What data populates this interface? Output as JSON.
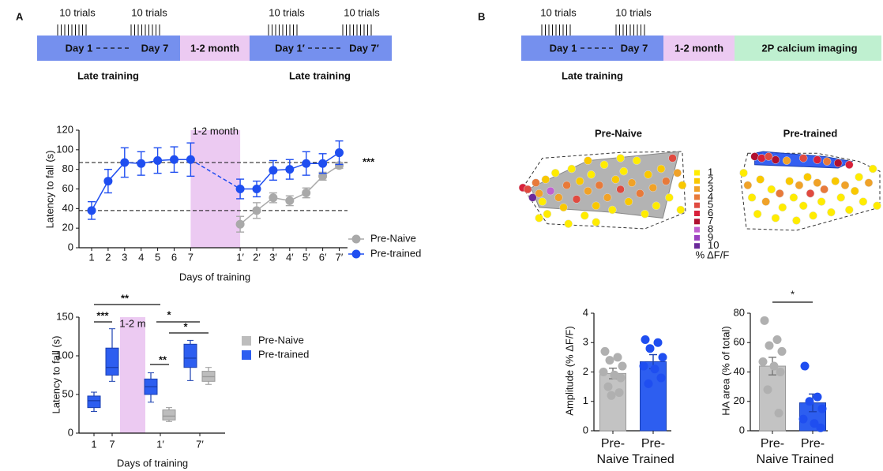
{
  "panel_labels": [
    "A",
    "B"
  ],
  "timelines": [
    {
      "trials": [
        "10 trials",
        "10 trials",
        "10 trials",
        "10 trials"
      ],
      "blocks": [
        "Day 1",
        "Day 7",
        "1-2 month",
        "Day 1′",
        "Day 7′"
      ],
      "phases": [
        "Late training",
        "Late training"
      ]
    },
    {
      "trials": [
        "10 trials",
        "10 trials"
      ],
      "blocks": [
        "Day 1",
        "Day 7",
        "1-2 month",
        "2P calcium imaging"
      ],
      "phases": [
        "Late training"
      ]
    }
  ],
  "chart_data": [
    {
      "type": "line",
      "ylabel": "Latency to fall (s)",
      "xlabel": "Days of training",
      "categories": [
        "1",
        "2",
        "3",
        "4",
        "5",
        "6",
        "7",
        null,
        null,
        "1′",
        "2′",
        "3′",
        "4′",
        "5′",
        "6′",
        "7′"
      ],
      "series": [
        {
          "name": "Pre-Naive",
          "color": "#a9a9a9",
          "values": [
            null,
            null,
            null,
            null,
            null,
            null,
            null,
            null,
            null,
            24,
            38,
            51,
            48,
            56,
            73,
            84
          ],
          "errors": [
            null,
            null,
            null,
            null,
            null,
            null,
            null,
            null,
            null,
            8,
            8,
            5,
            5,
            5,
            4,
            3
          ]
        },
        {
          "name": "Pre-trained",
          "color": "#1f4ef0",
          "gap_style": "dashed",
          "values": [
            38,
            68,
            87,
            86,
            89,
            90,
            90,
            null,
            null,
            60,
            60,
            79,
            80,
            86,
            86,
            97
          ],
          "errors": [
            9,
            12,
            15,
            12,
            13,
            13,
            17,
            null,
            null,
            10,
            8,
            10,
            10,
            12,
            10,
            12
          ]
        }
      ],
      "ylim": [
        0,
        120
      ],
      "yticks": [
        0,
        20,
        40,
        60,
        80,
        100,
        120
      ],
      "reference_lines": [
        87,
        38
      ],
      "annotation": "***",
      "shade_label": "1-2 month"
    },
    {
      "type": "box",
      "ylabel": "Latency to fall (s)",
      "xlabel": "Days of training",
      "categories": [
        "1",
        "7",
        "1′",
        "7′"
      ],
      "series": [
        {
          "name": "Pre-Naive",
          "color": "#bdbdbd",
          "boxes": [
            null,
            null,
            {
              "min": 15,
              "q1": 17,
              "median": 22,
              "q3": 30,
              "max": 33
            },
            {
              "min": 63,
              "q1": 67,
              "median": 73,
              "q3": 80,
              "max": 85
            }
          ]
        },
        {
          "name": "Pre-trained",
          "color": "#2d5ef0",
          "boxes": [
            {
              "min": 28,
              "q1": 33,
              "median": 42,
              "q3": 48,
              "max": 53
            },
            {
              "min": 67,
              "q1": 75,
              "median": 85,
              "q3": 110,
              "max": 135
            },
            {
              "min": 40,
              "q1": 50,
              "median": 60,
              "q3": 70,
              "max": 78
            },
            {
              "min": 68,
              "q1": 85,
              "median": 97,
              "q3": 115,
              "max": 120
            }
          ]
        }
      ],
      "ylim": [
        0,
        150
      ],
      "yticks": [
        0,
        50,
        100,
        150
      ],
      "annotations": [
        "**",
        "***",
        "*",
        "*",
        "**"
      ],
      "shade_label": "1-2 m"
    },
    {
      "type": "scatter",
      "title": "Pre-Naive",
      "title_color": "#111111",
      "x": [
        0,
        3,
        6,
        8,
        10,
        12,
        14,
        15,
        17,
        20,
        22,
        25,
        27,
        30,
        33,
        35,
        38,
        40,
        42,
        45,
        47,
        50,
        52,
        55,
        57,
        60,
        62,
        65,
        67,
        70,
        72,
        75,
        77,
        80,
        82,
        85,
        88,
        90,
        92,
        95,
        97,
        98,
        60,
        40,
        45,
        10,
        28
      ],
      "y": [
        52,
        50,
        40,
        58,
        45,
        35,
        62,
        20,
        48,
        70,
        40,
        28,
        55,
        75,
        38,
        60,
        18,
        48,
        68,
        30,
        55,
        80,
        40,
        25,
        62,
        50,
        72,
        35,
        58,
        85,
        45,
        20,
        68,
        52,
        30,
        75,
        60,
        40,
        88,
        70,
        25,
        55,
        88,
        85,
        10,
        15,
        8
      ],
      "values": [
        6,
        5,
        10,
        4,
        3,
        1,
        2,
        1,
        8,
        1,
        3,
        2,
        4,
        1,
        5,
        2,
        1,
        3,
        1,
        2,
        4,
        1,
        3,
        1,
        2,
        5,
        1,
        2,
        3,
        1,
        4,
        1,
        2,
        3,
        1,
        2,
        4,
        1,
        5,
        3,
        1,
        2,
        1,
        2,
        1,
        1,
        1
      ],
      "colorbar": {
        "levels": [
          1,
          2,
          3,
          4,
          5,
          6,
          7,
          8,
          9,
          10
        ],
        "colors": [
          "#ffec00",
          "#f9c800",
          "#f0a228",
          "#e87a3a",
          "#e04a40",
          "#d8203a",
          "#b01030",
          "#c060d0",
          "#9a40c0",
          "#6a2a9a"
        ],
        "label": "% ΔF/F"
      }
    },
    {
      "type": "scatter",
      "title": "Pre-trained",
      "title_color": "#1f4ef0",
      "x": [
        10,
        15,
        20,
        25,
        33,
        45,
        55,
        62,
        70,
        78,
        2,
        5,
        8,
        12,
        14,
        18,
        22,
        25,
        28,
        30,
        35,
        38,
        40,
        42,
        45,
        48,
        50,
        52,
        55,
        58,
        60,
        65,
        68,
        72,
        75,
        78,
        82,
        85,
        88,
        92,
        95,
        98
      ],
      "y": [
        90,
        88,
        90,
        86,
        85,
        88,
        86,
        84,
        82,
        80,
        70,
        55,
        40,
        20,
        62,
        35,
        50,
        15,
        45,
        28,
        60,
        40,
        12,
        55,
        30,
        65,
        45,
        18,
        58,
        35,
        50,
        22,
        60,
        40,
        55,
        25,
        48,
        65,
        35,
        58,
        75,
        30
      ],
      "values": [
        7,
        6,
        5,
        7,
        3,
        5,
        6,
        4,
        7,
        6,
        1,
        3,
        1,
        1,
        2,
        3,
        1,
        1,
        4,
        1,
        2,
        1,
        1,
        3,
        1,
        2,
        5,
        1,
        3,
        1,
        4,
        1,
        2,
        1,
        3,
        1,
        2,
        1,
        1,
        3,
        1,
        1
      ]
    },
    {
      "type": "bar",
      "ylabel": "Amplitude (% ΔF/F)",
      "categories": [
        "Pre-\nNaive",
        "Pre-\nTrained"
      ],
      "values": [
        1.95,
        2.35
      ],
      "errors": [
        0.18,
        0.24
      ],
      "colors": [
        "#c3c3c3",
        "#2d5ef0"
      ],
      "point_colors": [
        "#b0b0b0",
        "#1f4ef0"
      ],
      "points": [
        [
          2.7,
          2.5,
          2.4,
          2.2,
          2.0,
          1.9,
          1.8,
          1.5,
          1.3,
          1.2
        ],
        [
          3.1,
          3.0,
          2.8,
          2.5,
          2.2,
          2.1,
          1.8,
          1.6
        ]
      ],
      "ylim": [
        0,
        4
      ],
      "yticks": [
        0,
        1,
        2,
        3,
        4
      ]
    },
    {
      "type": "bar",
      "ylabel": "HA area (% of total)",
      "categories": [
        "Pre-\nNaive",
        "Pre-\nTrained"
      ],
      "values": [
        44,
        19
      ],
      "errors": [
        6,
        6
      ],
      "colors": [
        "#c3c3c3",
        "#2d5ef0"
      ],
      "point_colors": [
        "#b0b0b0",
        "#1f4ef0"
      ],
      "points": [
        [
          75,
          62,
          58,
          54,
          47,
          44,
          40,
          28,
          12
        ],
        [
          44,
          23,
          20,
          15,
          8,
          5,
          2
        ]
      ],
      "ylim": [
        0,
        80
      ],
      "yticks": [
        0,
        20,
        40,
        60,
        80
      ],
      "annotations": [
        "*"
      ]
    }
  ]
}
